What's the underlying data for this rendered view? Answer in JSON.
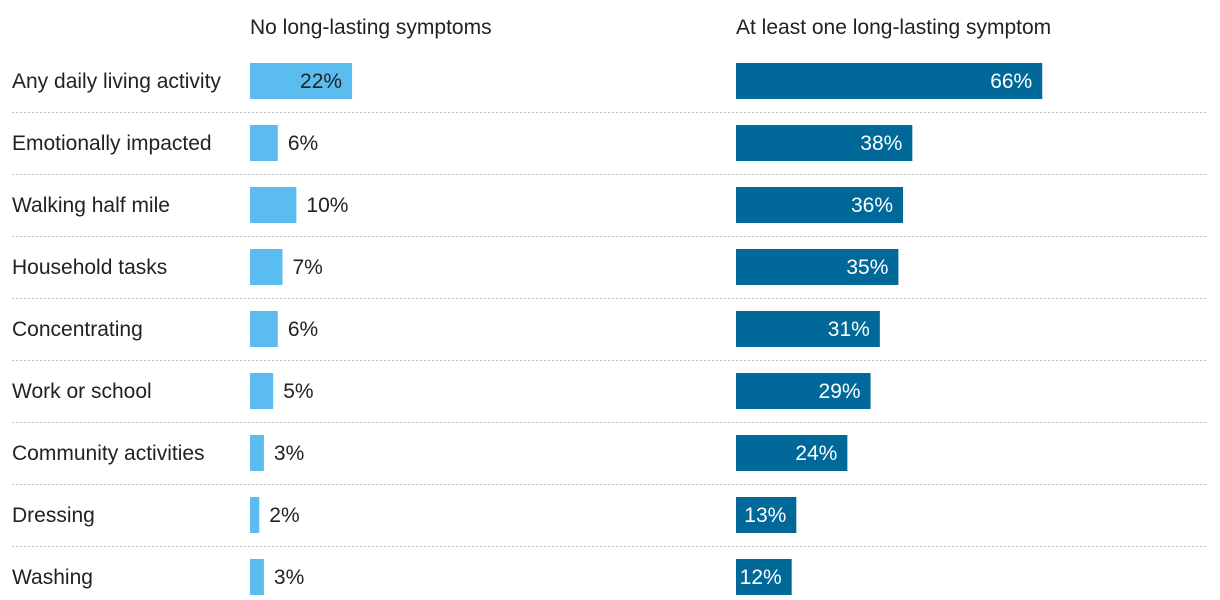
{
  "chart_data": {
    "type": "bar",
    "orientation": "horizontal",
    "layout": "small-multiples",
    "categories": [
      "Any daily living activity",
      "Emotionally impacted",
      "Walking half mile",
      "Household tasks",
      "Concentrating",
      "Work or school",
      "Community activities",
      "Dressing",
      "Washing"
    ],
    "series": [
      {
        "name": "No long-lasting symptoms",
        "values": [
          22,
          6,
          10,
          7,
          6,
          5,
          3,
          2,
          3
        ],
        "labels": [
          "22%",
          "6%",
          "10%",
          "7%",
          "6%",
          "5%",
          "3%",
          "2%",
          "3%"
        ],
        "color": "#5bbcef"
      },
      {
        "name": "At least one long-lasting symptom",
        "values": [
          66,
          38,
          36,
          35,
          31,
          29,
          24,
          13,
          12
        ],
        "labels": [
          "66%",
          "38%",
          "36%",
          "35%",
          "31%",
          "29%",
          "24%",
          "13%",
          "12%"
        ],
        "color": "#00699a"
      }
    ],
    "unit": "%",
    "grid": false,
    "row_separators": "dotted",
    "value_labels": "inside-or-outside",
    "colors": {
      "text": "#222222",
      "label_on_bar": "#ffffff",
      "separator": "#bdbdbd"
    }
  }
}
